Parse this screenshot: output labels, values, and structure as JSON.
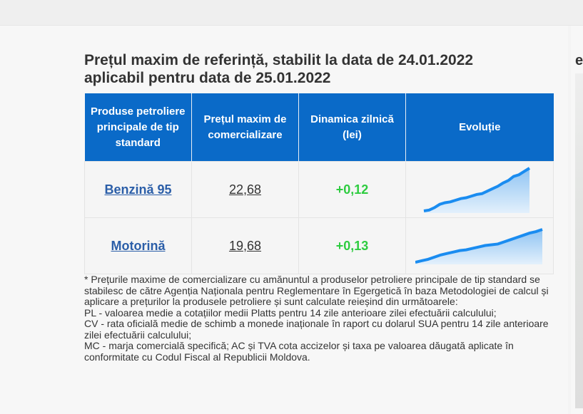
{
  "heading": {
    "line1": "Prețul maxim de referință, stabilit la data de 24.01.2022",
    "line2": "aplicabil pentru data de 25.01.2022"
  },
  "side_title": "e",
  "table": {
    "headers": [
      "Produse petroliere principale de tip standard",
      "Prețul maxim de comercializare",
      "Dinamica zilnică (lei)",
      "Evoluție"
    ],
    "rows": [
      {
        "product": "Benzină 95",
        "price": "22,68",
        "dynamic": "+0,12",
        "trend": [
          0,
          0.5,
          2,
          4,
          5,
          5.5,
          6.5,
          7.5,
          8,
          9,
          10,
          10.5,
          12,
          13.5,
          15,
          17,
          18.5,
          21,
          22,
          24,
          26
        ]
      },
      {
        "product": "Motorină",
        "price": "19,68",
        "dynamic": "+0,13",
        "trend": [
          0,
          1,
          2,
          3.5,
          5,
          6,
          7,
          8,
          8.5,
          9.5,
          10.5,
          11.5,
          12,
          12.5,
          14,
          15.5,
          17,
          18.5,
          20,
          21,
          22.5
        ]
      }
    ]
  },
  "colors": {
    "header": "#0a6ac8",
    "link": "#2b5ea8",
    "positive": "#2ecc40",
    "line": "#1a8cf0"
  },
  "note": [
    "* Prețurile maxime de comercializare cu amănuntul a produselor petroliere principale de tip standard se stabilesc de către Agenția Naționala pentru Reglementare în Egergetică în baza Metodologiei de calcul și aplicare a prețurilor la produsele petroliere și sunt calculate reieșind din următoarele:",
    "PL - valoarea medie a cotațiilor medii Platts pentru 14 zile anterioare zilei efectuării calculului;",
    "CV - rata oficială medie de schimb a monede inaționale în raport cu dolarul SUA pentru 14 zile anterioare zilei efectuării calculului;",
    "MC - marja comercială specifică; AC și TVA cota accizelor și taxa pe valoarea dăugată aplicate în conformitate cu Codul Fiscal al Republicii Moldova."
  ]
}
